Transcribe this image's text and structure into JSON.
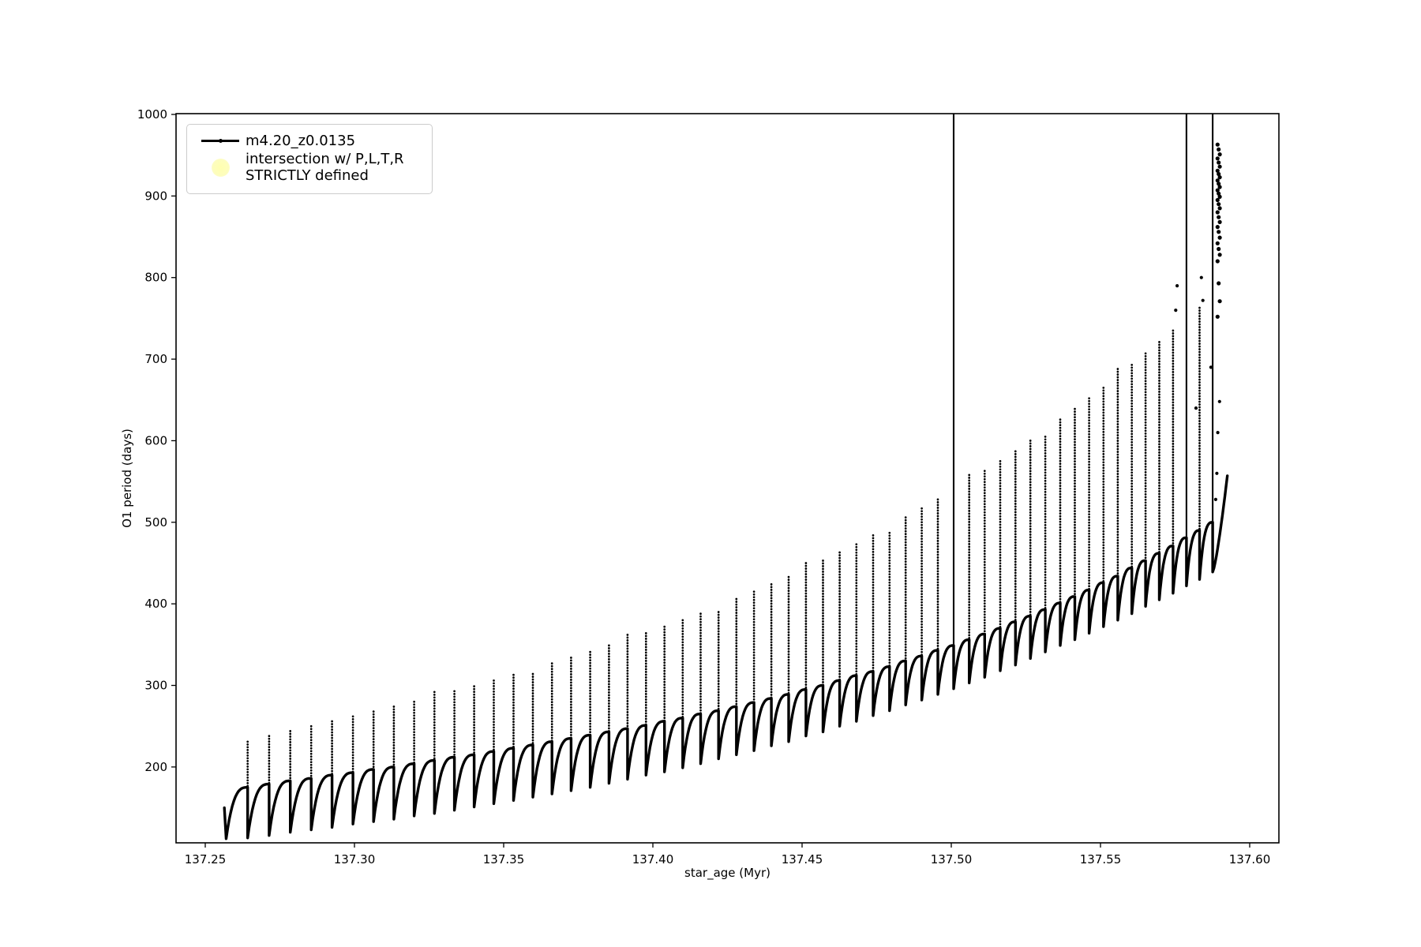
{
  "figure": {
    "bg": "#ffffff",
    "series_color": "#000000",
    "scatter_marker_color": "#fcfcb8"
  },
  "chart_data": {
    "type": "scatter",
    "title": "",
    "xlabel": "star_age (Myr)",
    "ylabel": "O1 period (days)",
    "xlim": [
      137.2402,
      137.6098
    ],
    "ylim": [
      107,
      1000
    ],
    "xticks": [
      137.25,
      137.3,
      137.35,
      137.4,
      137.45,
      137.5,
      137.55,
      137.6
    ],
    "xtick_labels": [
      "137.25",
      "137.30",
      "137.35",
      "137.40",
      "137.45",
      "137.50",
      "137.55",
      "137.60"
    ],
    "yticks": [
      200,
      300,
      400,
      500,
      600,
      700,
      800,
      900,
      1000
    ],
    "ytick_labels": [
      "200",
      "300",
      "400",
      "500",
      "600",
      "700",
      "800",
      "900",
      "1000"
    ],
    "grid": false,
    "legend": {
      "location": "upper left",
      "entries": [
        {
          "label": "m4.20_z0.0135",
          "marker": "line-with-dot",
          "color": "#000000"
        },
        {
          "label": "intersection w/ P,L,T,R\nSTRICTLY defined",
          "marker": "circle",
          "color": "#fcfcb8"
        }
      ]
    },
    "series_name": "m4.20_z0.0135",
    "lead_in": {
      "x0": 137.2564,
      "y0": 150,
      "x1": 137.257,
      "y1": 112
    },
    "start": {
      "x": 137.257,
      "dip": 112
    },
    "cycles_format": [
      "x_end",
      "plateau",
      "spike_top",
      "dip_after"
    ],
    "cycles": [
      [
        137.2642,
        175,
        231,
        113
      ],
      [
        137.2714,
        179,
        238,
        116
      ],
      [
        137.2785,
        183,
        244,
        120
      ],
      [
        137.2855,
        186,
        250,
        123
      ],
      [
        137.2925,
        190,
        256,
        126
      ],
      [
        137.2995,
        193,
        262,
        130
      ],
      [
        137.3064,
        197,
        268,
        133
      ],
      [
        137.3132,
        200,
        274,
        136
      ],
      [
        137.32,
        204,
        280,
        140
      ],
      [
        137.3268,
        208,
        292,
        143
      ],
      [
        137.3335,
        212,
        293,
        147
      ],
      [
        137.3401,
        215,
        299,
        151
      ],
      [
        137.3467,
        219,
        306,
        155
      ],
      [
        137.3533,
        223,
        313,
        159
      ],
      [
        137.3598,
        227,
        314,
        163
      ],
      [
        137.3662,
        231,
        327,
        167
      ],
      [
        137.3726,
        235,
        334,
        171
      ],
      [
        137.379,
        239,
        341,
        175
      ],
      [
        137.3853,
        243,
        349,
        180
      ],
      [
        137.3915,
        247,
        362,
        185
      ],
      [
        137.3977,
        251,
        364,
        190
      ],
      [
        137.4039,
        256,
        372,
        194
      ],
      [
        137.41,
        260,
        380,
        199
      ],
      [
        137.416,
        265,
        388,
        204
      ],
      [
        137.422,
        269,
        390,
        210
      ],
      [
        137.428,
        274,
        406,
        215
      ],
      [
        137.4339,
        279,
        415,
        220
      ],
      [
        137.4397,
        284,
        424,
        226
      ],
      [
        137.4455,
        289,
        433,
        231
      ],
      [
        137.4513,
        295,
        450,
        238
      ],
      [
        137.457,
        300,
        453,
        243
      ],
      [
        137.4626,
        306,
        463,
        250
      ],
      [
        137.4682,
        312,
        473,
        256
      ],
      [
        137.4738,
        317,
        484,
        263
      ],
      [
        137.4793,
        323,
        487,
        269
      ],
      [
        137.4847,
        330,
        506,
        276
      ],
      [
        137.4901,
        336,
        517,
        282
      ],
      [
        137.4955,
        343,
        528,
        289
      ],
      [
        137.5008,
        349,
        1005,
        296
      ],
      [
        137.506,
        356,
        558,
        303
      ],
      [
        137.5112,
        363,
        563,
        310
      ],
      [
        137.5164,
        370,
        575,
        318
      ],
      [
        137.5215,
        378,
        587,
        325
      ],
      [
        137.5265,
        385,
        600,
        333
      ],
      [
        137.5315,
        393,
        605,
        341
      ],
      [
        137.5365,
        401,
        626,
        349
      ],
      [
        137.5414,
        409,
        639,
        356
      ],
      [
        137.5462,
        417,
        652,
        364
      ],
      [
        137.551,
        426,
        665,
        372
      ],
      [
        137.5558,
        434,
        688,
        380
      ],
      [
        137.5605,
        444,
        693,
        388
      ],
      [
        137.5651,
        453,
        707,
        397
      ],
      [
        137.5697,
        462,
        721,
        405
      ],
      [
        137.5743,
        471,
        735,
        413
      ],
      [
        137.5788,
        481,
        1005,
        422
      ],
      [
        137.5832,
        490,
        763,
        430
      ],
      [
        137.5876,
        500,
        1005,
        439
      ]
    ],
    "tail": {
      "x": 137.5925,
      "y": 557
    },
    "cluster": {
      "x": 137.5896,
      "values": [
        963,
        957,
        951,
        946,
        941,
        936,
        931,
        927,
        923,
        919,
        915,
        911,
        907,
        903,
        899,
        895,
        890,
        885,
        880,
        874,
        868,
        862,
        856,
        849,
        842,
        835,
        828,
        820,
        793,
        771,
        752
      ]
    },
    "extra_points": [
      [
        137.5886,
        528
      ],
      [
        137.589,
        560
      ],
      [
        137.5893,
        610
      ],
      [
        137.5899,
        648
      ],
      [
        137.587,
        690
      ],
      [
        137.5838,
        800
      ],
      [
        137.5843,
        772
      ],
      [
        137.582,
        640
      ],
      [
        137.5752,
        760
      ],
      [
        137.5757,
        790
      ]
    ]
  }
}
